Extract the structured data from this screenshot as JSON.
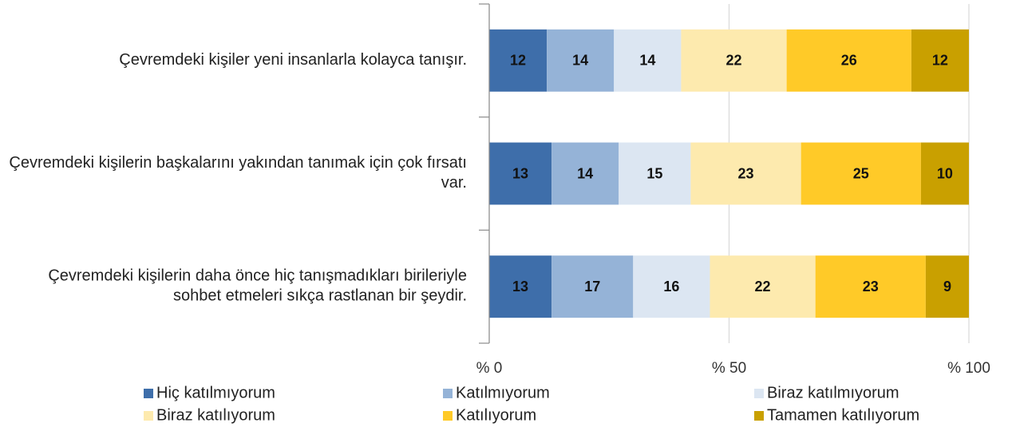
{
  "chart_data": {
    "type": "stacked_bar_horizontal",
    "categories": [
      "Çevremdeki kişiler yeni insanlarla kolayca tanışır.",
      "Çevremdeki kişilerin başkalarını yakından tanımak için çok fırsatı var.",
      "Çevremdeki kişilerin daha önce hiç tanışmadıkları birileriyle sohbet etmeleri sıkça rastlanan bir şeydir."
    ],
    "series": [
      {
        "name": "Hiç katılmıyorum",
        "color": "#3e6eaa",
        "values": [
          12,
          13,
          13
        ]
      },
      {
        "name": "Katılmıyorum",
        "color": "#95b3d7",
        "values": [
          14,
          14,
          17
        ]
      },
      {
        "name": "Biraz katılmıyorum",
        "color": "#dce6f2",
        "values": [
          14,
          15,
          16
        ]
      },
      {
        "name": "Biraz katılıyorum",
        "color": "#fdeaae",
        "values": [
          22,
          23,
          22
        ]
      },
      {
        "name": "Katılıyorum",
        "color": "#ffca28",
        "values": [
          26,
          25,
          23
        ]
      },
      {
        "name": "Tamamen katılıyorum",
        "color": "#c9a000",
        "values": [
          12,
          10,
          9
        ]
      }
    ],
    "xlim": [
      0,
      100
    ],
    "xticks": [
      {
        "value": 0,
        "label": "% 0"
      },
      {
        "value": 50,
        "label": "% 50"
      },
      {
        "value": 100,
        "label": "% 100"
      }
    ],
    "grid": true,
    "legend": "bottom"
  }
}
